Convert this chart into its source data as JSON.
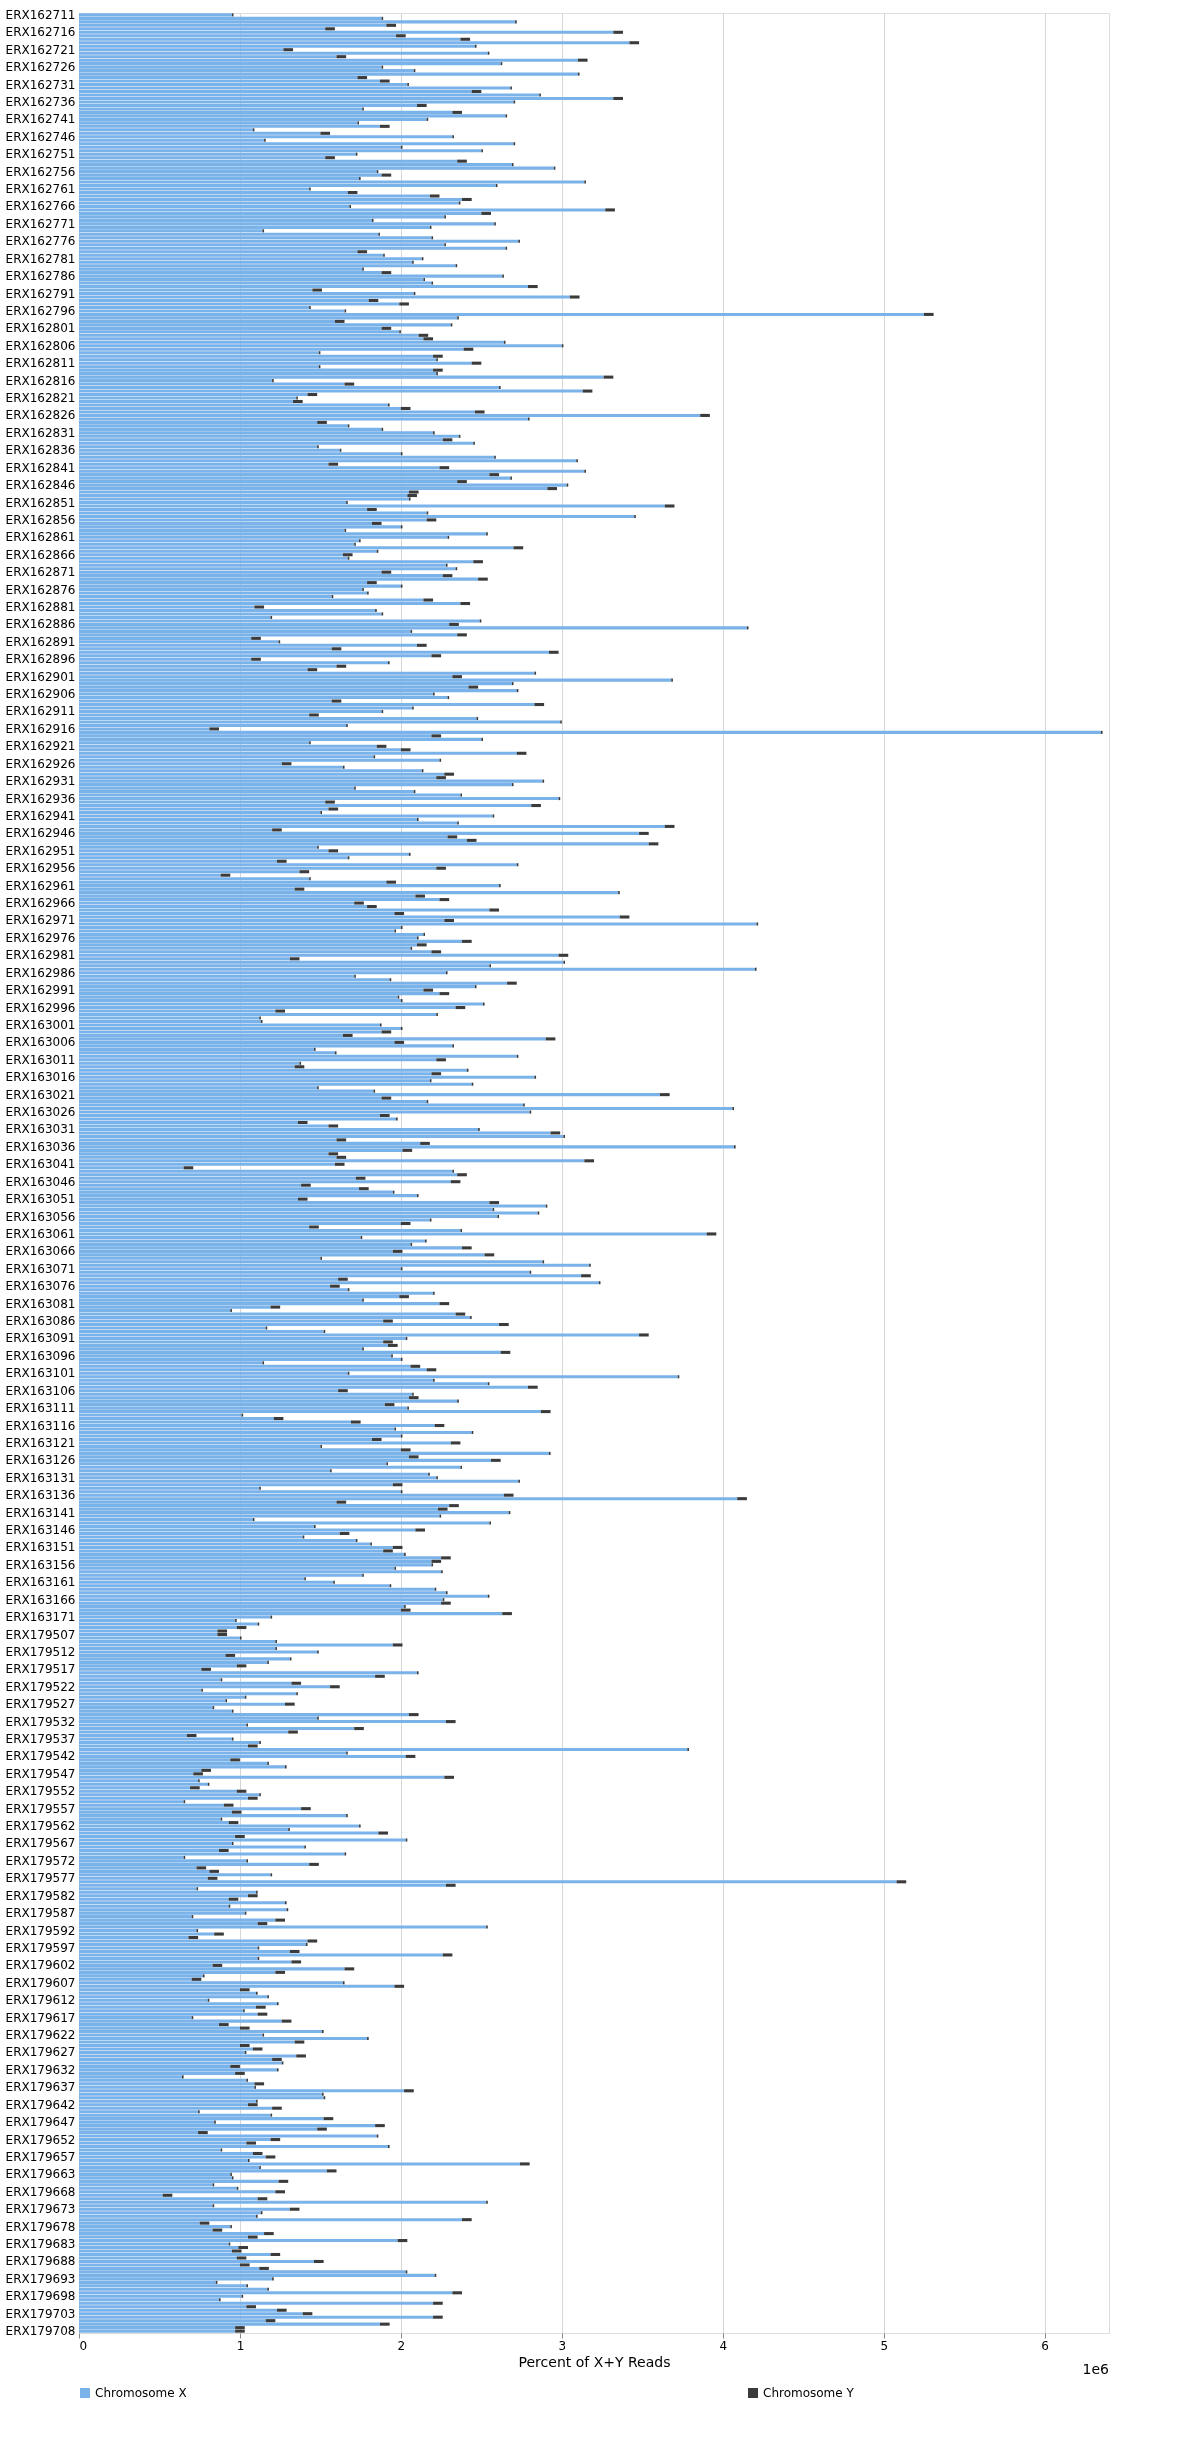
{
  "chart_data": {
    "type": "bar",
    "orientation": "horizontal",
    "stacked": true,
    "xlabel": "Percent of X+Y Reads",
    "annotations": [
      "1e6"
    ],
    "xlim": [
      0,
      6.4
    ],
    "xticks": [
      0,
      1,
      2,
      3,
      4,
      5,
      6
    ],
    "grid": "x",
    "legend": "bottom",
    "categories": [
      "ERX162711",
      null,
      null,
      null,
      null,
      "ERX162716",
      null,
      null,
      null,
      null,
      "ERX162721",
      null,
      null,
      null,
      null,
      "ERX162726",
      null,
      null,
      null,
      null,
      "ERX162731",
      null,
      null,
      null,
      null,
      "ERX162736",
      null,
      null,
      null,
      null,
      "ERX162741",
      null,
      null,
      null,
      null,
      "ERX162746",
      null,
      null,
      null,
      null,
      "ERX162751",
      null,
      null,
      null,
      null,
      "ERX162756",
      null,
      null,
      null,
      null,
      "ERX162761",
      null,
      null,
      null,
      null,
      "ERX162766",
      null,
      null,
      null,
      null,
      "ERX162771",
      null,
      null,
      null,
      null,
      "ERX162776",
      null,
      null,
      null,
      null,
      "ERX162781",
      null,
      null,
      null,
      null,
      "ERX162786",
      null,
      null,
      null,
      null,
      "ERX162791",
      null,
      null,
      null,
      null,
      "ERX162796",
      null,
      null,
      null,
      null,
      "ERX162801",
      null,
      null,
      null,
      null,
      "ERX162806",
      null,
      null,
      null,
      null,
      "ERX162811",
      null,
      null,
      null,
      null,
      "ERX162816",
      null,
      null,
      null,
      null,
      "ERX162821",
      null,
      null,
      null,
      null,
      "ERX162826",
      null,
      null,
      null,
      null,
      "ERX162831",
      null,
      null,
      null,
      null,
      "ERX162836",
      null,
      null,
      null,
      null,
      "ERX162841",
      null,
      null,
      null,
      null,
      "ERX162846",
      null,
      null,
      null,
      null,
      "ERX162851",
      null,
      null,
      null,
      null,
      "ERX162856",
      null,
      null,
      null,
      null,
      "ERX162861",
      null,
      null,
      null,
      null,
      "ERX162866",
      null,
      null,
      null,
      null,
      "ERX162871",
      null,
      null,
      null,
      null,
      "ERX162876",
      null,
      null,
      null,
      null,
      "ERX162881",
      null,
      null,
      null,
      null,
      "ERX162886",
      null,
      null,
      null,
      null,
      "ERX162891",
      null,
      null,
      null,
      null,
      "ERX162896",
      null,
      null,
      null,
      null,
      "ERX162901",
      null,
      null,
      null,
      null,
      "ERX162906",
      null,
      null,
      null,
      null,
      "ERX162911",
      null,
      null,
      null,
      null,
      "ERX162916",
      null,
      null,
      null,
      null,
      "ERX162921",
      null,
      null,
      null,
      null,
      "ERX162926",
      null,
      null,
      null,
      null,
      "ERX162931",
      null,
      null,
      null,
      null,
      "ERX162936",
      null,
      null,
      null,
      null,
      "ERX162941",
      null,
      null,
      null,
      null,
      "ERX162946",
      null,
      null,
      null,
      null,
      "ERX162951",
      null,
      null,
      null,
      null,
      "ERX162956",
      null,
      null,
      null,
      null,
      "ERX162961",
      null,
      null,
      null,
      null,
      "ERX162966",
      null,
      null,
      null,
      null,
      "ERX162971",
      null,
      null,
      null,
      null,
      "ERX162976",
      null,
      null,
      null,
      null,
      "ERX162981",
      null,
      null,
      null,
      null,
      "ERX162986",
      null,
      null,
      null,
      null,
      "ERX162991",
      null,
      null,
      null,
      null,
      "ERX162996",
      null,
      null,
      null,
      null,
      "ERX163001",
      null,
      null,
      null,
      null,
      "ERX163006",
      null,
      null,
      null,
      null,
      "ERX163011",
      null,
      null,
      null,
      null,
      "ERX163016",
      null,
      null,
      null,
      null,
      "ERX163021",
      null,
      null,
      null,
      null,
      "ERX163026",
      null,
      null,
      null,
      null,
      "ERX163031",
      null,
      null,
      null,
      null,
      "ERX163036",
      null,
      null,
      null,
      null,
      "ERX163041",
      null,
      null,
      null,
      null,
      "ERX163046",
      null,
      null,
      null,
      null,
      "ERX163051",
      null,
      null,
      null,
      null,
      "ERX163056",
      null,
      null,
      null,
      null,
      "ERX163061",
      null,
      null,
      null,
      null,
      "ERX163066",
      null,
      null,
      null,
      null,
      "ERX163071",
      null,
      null,
      null,
      null,
      "ERX163076",
      null,
      null,
      null,
      null,
      "ERX163081",
      null,
      null,
      null,
      null,
      "ERX163086",
      null,
      null,
      null,
      null,
      "ERX163091",
      null,
      null,
      null,
      null,
      "ERX163096",
      null,
      null,
      null,
      null,
      "ERX163101",
      null,
      null,
      null,
      null,
      "ERX163106",
      null,
      null,
      null,
      null,
      "ERX163111",
      null,
      null,
      null,
      null,
      "ERX163116",
      null,
      null,
      null,
      null,
      "ERX163121",
      null,
      null,
      null,
      null,
      "ERX163126",
      null,
      null,
      null,
      null,
      "ERX163131",
      null,
      null,
      null,
      null,
      "ERX163136",
      null,
      null,
      null,
      null,
      "ERX163141",
      null,
      null,
      null,
      null,
      "ERX163146",
      null,
      null,
      null,
      null,
      "ERX163151",
      null,
      null,
      null,
      null,
      "ERX163156",
      null,
      null,
      null,
      null,
      "ERX163161",
      null,
      null,
      null,
      null,
      "ERX163166",
      null,
      null,
      null,
      null,
      "ERX163171",
      null,
      null,
      null,
      null,
      "ERX179507",
      null,
      null,
      null,
      null,
      "ERX179512",
      null,
      null,
      null,
      null,
      "ERX179517",
      null,
      null,
      null,
      null,
      "ERX179522",
      null,
      null,
      null,
      null,
      "ERX179527",
      null,
      null,
      null,
      null,
      "ERX179532",
      null,
      null,
      null,
      null,
      "ERX179537",
      null,
      null,
      null,
      null,
      "ERX179542",
      null,
      null,
      null,
      null,
      "ERX179547",
      null,
      null,
      null,
      null,
      "ERX179552",
      null,
      null,
      null,
      null,
      "ERX179557",
      null,
      null,
      null,
      null,
      "ERX179562",
      null,
      null,
      null,
      null,
      "ERX179567",
      null,
      null,
      null,
      null,
      "ERX179572",
      null,
      null,
      null,
      null,
      "ERX179577",
      null,
      null,
      null,
      null,
      "ERX179582",
      null,
      null,
      null,
      null,
      "ERX179587",
      null,
      null,
      null,
      null,
      "ERX179592",
      null,
      null,
      null,
      null,
      "ERX179597",
      null,
      null,
      null,
      null,
      "ERX179602",
      null,
      null,
      null,
      null,
      "ERX179607",
      null,
      null,
      null,
      null,
      "ERX179612",
      null,
      null,
      null,
      null,
      "ERX179617",
      null,
      null,
      null,
      null,
      "ERX179622",
      null,
      null,
      null,
      null,
      "ERX179627",
      null,
      null,
      null,
      null,
      "ERX179632",
      null,
      null,
      null,
      null,
      "ERX179637",
      null,
      null,
      null,
      null,
      "ERX179642",
      null,
      null,
      null,
      null,
      "ERX179647",
      null,
      null,
      null,
      null,
      "ERX179652",
      null,
      null,
      null,
      null,
      "ERX179657",
      null,
      null,
      null,
      null,
      "ERX179663",
      null,
      null,
      null,
      null,
      "ERX179668",
      null,
      null,
      null,
      null,
      "ERX179673",
      null,
      null,
      null,
      null,
      "ERX179678",
      null,
      null,
      null,
      null,
      "ERX179683",
      null,
      null,
      null,
      null,
      "ERX179688",
      null,
      null,
      null,
      null,
      "ERX179693",
      null,
      null,
      null,
      null,
      "ERX179698",
      null,
      null,
      null,
      null,
      "ERX179703",
      null,
      null,
      null,
      null,
      "ERX179708"
    ],
    "series": [
      {
        "name": "Chromosome X",
        "color": "#7ab2ea",
        "values": [
          0.95,
          1.88,
          2.71,
          1.91,
          1.53,
          3.32,
          1.97,
          2.37,
          3.42,
          2.46,
          1.27,
          2.54,
          1.6,
          3.1,
          2.62,
          1.88,
          2.08,
          3.1,
          1.73,
          1.87,
          2.04,
          2.68,
          2.44,
          2.86,
          3.32,
          2.7,
          2.1,
          1.76,
          2.32,
          2.65,
          2.16,
          1.73,
          1.87,
          1.08,
          1.5,
          2.32,
          1.15,
          2.7,
          2.0,
          2.5,
          1.72,
          1.53,
          2.35,
          2.69,
          2.95,
          1.85,
          1.88,
          1.74,
          3.14,
          2.59,
          1.43,
          1.67,
          2.18,
          2.38,
          2.36,
          1.68,
          3.27,
          2.5,
          2.27,
          1.82,
          2.58,
          2.18,
          1.14,
          1.86,
          2.19,
          2.73,
          2.27,
          2.65,
          1.73,
          1.89,
          2.13,
          2.07,
          2.34,
          1.76,
          1.88,
          2.63,
          2.14,
          2.19,
          2.79,
          1.45,
          2.08,
          3.05,
          1.8,
          1.99,
          1.43,
          1.65,
          5.25,
          2.35,
          1.59,
          2.31,
          1.88,
          1.99,
          2.11,
          2.14,
          2.64,
          3.0,
          2.39,
          1.49,
          2.2,
          2.22,
          2.44,
          1.49,
          2.2,
          2.22,
          3.26,
          1.2,
          1.65,
          2.61,
          3.13,
          1.42,
          1.35,
          1.33,
          1.92,
          2.0,
          2.46,
          3.86,
          2.79,
          1.48,
          1.67,
          1.88,
          2.2,
          2.36,
          2.26,
          2.45,
          1.48,
          1.62,
          2.0,
          2.58,
          3.09,
          1.55,
          2.24,
          3.14,
          2.55,
          2.68,
          2.35,
          3.03,
          2.91,
          2.05,
          2.04,
          2.05,
          1.66,
          3.64,
          1.79,
          2.16,
          3.45,
          2.16,
          1.82,
          2.0,
          1.65,
          2.53,
          2.29,
          1.74,
          1.71,
          2.7,
          1.85,
          1.64,
          1.67,
          2.45,
          2.28,
          2.34,
          1.88,
          2.26,
          2.48,
          1.79,
          2.0,
          1.76,
          1.79,
          1.57,
          2.14,
          2.37,
          1.09,
          1.84,
          1.88,
          1.19,
          2.49,
          2.3,
          4.15,
          2.06,
          2.35,
          1.07,
          1.24,
          2.1,
          1.57,
          2.92,
          2.19,
          1.07,
          1.92,
          1.6,
          1.42,
          2.83,
          2.32,
          3.68,
          2.69,
          2.42,
          2.72,
          2.2,
          2.29,
          1.57,
          2.83,
          2.07,
          1.88,
          1.43,
          2.47,
          2.99,
          1.66,
          0.81,
          6.35,
          2.19,
          2.5,
          1.43,
          1.85,
          2.0,
          2.72,
          1.83,
          2.24,
          1.26,
          1.64,
          2.13,
          2.27,
          2.22,
          2.88,
          2.69,
          1.71,
          2.08,
          2.37,
          2.98,
          1.53,
          2.81,
          1.55,
          1.5,
          2.57,
          2.1,
          2.35,
          3.64,
          1.2,
          3.48,
          2.29,
          2.41,
          3.54,
          1.48,
          1.55,
          2.05,
          1.67,
          1.23,
          2.72,
          2.22,
          1.37,
          0.88,
          1.43,
          1.91,
          2.61,
          1.34,
          3.35,
          2.09,
          2.24,
          1.71,
          1.79,
          2.55,
          1.96,
          3.36,
          2.27,
          4.21,
          2.0,
          1.96,
          2.14,
          2.1,
          2.38,
          2.1,
          2.06,
          2.19,
          2.98,
          1.31,
          3.01,
          2.55,
          4.2,
          2.28,
          1.71,
          1.93,
          2.66,
          2.46,
          2.14,
          2.24,
          1.98,
          2.0,
          2.51,
          2.34,
          1.22,
          2.22,
          1.12,
          1.13,
          1.87,
          2.0,
          1.88,
          1.64,
          2.9,
          1.96,
          2.32,
          1.46,
          1.59,
          2.72,
          2.22,
          1.37,
          1.34,
          2.41,
          2.19,
          2.83,
          2.18,
          2.44,
          1.48,
          1.83,
          3.61,
          1.88,
          2.16,
          2.76,
          4.06,
          2.8,
          1.87,
          1.97,
          1.36,
          1.55,
          2.48,
          2.93,
          3.01,
          1.6,
          2.12,
          4.07,
          2.01,
          1.55,
          1.6,
          3.14,
          1.59,
          0.65,
          2.32,
          2.35,
          1.72,
          2.31,
          1.38,
          1.74,
          1.95,
          2.1,
          1.36,
          2.55,
          2.9,
          2.57,
          2.85,
          2.6,
          2.18,
          2.0,
          1.43,
          2.37,
          3.9,
          1.75,
          2.15,
          2.06,
          2.38,
          1.95,
          2.52,
          1.5,
          2.88,
          3.17,
          2.0,
          2.8,
          3.12,
          1.61,
          3.23,
          1.56,
          1.67,
          2.2,
          1.99,
          1.76,
          2.24,
          1.19,
          0.94,
          2.34,
          2.43,
          1.89,
          2.61,
          1.16,
          1.52,
          3.48,
          2.03,
          1.89,
          1.92,
          1.76,
          2.62,
          1.94,
          2.0,
          1.14,
          2.06,
          2.16,
          1.67,
          3.72,
          2.2,
          2.54,
          2.79,
          1.61,
          2.07,
          2.05,
          2.35,
          1.9,
          2.04,
          2.87,
          1.01,
          1.21,
          1.69,
          2.21,
          1.96,
          2.44,
          2.0,
          1.82,
          2.31,
          1.5,
          2.0,
          2.92,
          2.05,
          2.56,
          1.91,
          2.37,
          1.56,
          2.17,
          2.22,
          2.73,
          1.95,
          1.12,
          2.0,
          2.64,
          4.09,
          1.6,
          2.3,
          2.23,
          2.67,
          2.24,
          1.08,
          2.55,
          1.46,
          2.09,
          1.62,
          1.39,
          1.72,
          1.81,
          1.95,
          1.89,
          2.02,
          2.25,
          2.19,
          2.19,
          1.96,
          2.25,
          1.76,
          1.4,
          1.58,
          1.93,
          2.21,
          2.28,
          2.54,
          2.26,
          2.25,
          2.02,
          2.0,
          2.63,
          1.19,
          0.97,
          1.11,
          0.98,
          0.86,
          0.86,
          1.0,
          1.22,
          1.95,
          1.22,
          1.48,
          0.91,
          1.31,
          1.17,
          0.98,
          0.76,
          2.1,
          1.84,
          0.88,
          1.32,
          1.56,
          0.76,
          1.35,
          1.03,
          0.91,
          1.28,
          0.83,
          0.95,
          2.05,
          1.48,
          2.28,
          1.04,
          1.71,
          1.3,
          0.67,
          0.95,
          1.12,
          1.05,
          3.78,
          1.66,
          2.03,
          0.94,
          1.17,
          1.28,
          0.76,
          0.71,
          2.27,
          0.74,
          0.8,
          0.69,
          0.98,
          1.12,
          1.05,
          0.65,
          0.9,
          1.38,
          0.95,
          1.66,
          0.88,
          0.93,
          1.74,
          1.3,
          1.86,
          0.97,
          2.03,
          0.95,
          1.4,
          0.87,
          1.65,
          0.65,
          1.04,
          1.43,
          0.73,
          0.81,
          1.19,
          0.8,
          5.08,
          2.28,
          0.73,
          1.1,
          1.05,
          0.93,
          1.28,
          0.93,
          1.29,
          1.03,
          0.7,
          1.22,
          1.11,
          2.53,
          0.73,
          0.84,
          0.68,
          1.42,
          1.41,
          1.11,
          1.31,
          2.26,
          1.11,
          1.32,
          0.83,
          1.65,
          1.22,
          0.77,
          0.7,
          1.64,
          1.96,
          1.0,
          1.1,
          1.17,
          0.8,
          1.23,
          1.1,
          1.02,
          1.11,
          0.7,
          1.26,
          0.87,
          1.0,
          1.51,
          1.14,
          1.79,
          1.34,
          1.0,
          1.08,
          1.03,
          1.35,
          1.2,
          1.26,
          0.94,
          1.23,
          0.97,
          0.64,
          1.04,
          1.09,
          1.09,
          2.02,
          1.51,
          1.52,
          1.1,
          1.05,
          1.2,
          0.74,
          1.19,
          1.52,
          0.84,
          1.84,
          1.48,
          0.74,
          1.85,
          1.19,
          1.04,
          1.92,
          0.88,
          1.08,
          1.16,
          1.05,
          2.74,
          1.12,
          1.54,
          0.94,
          0.95,
          1.24,
          0.83,
          0.98,
          1.22,
          0.52,
          1.11,
          2.53,
          0.83,
          1.31,
          1.13,
          1.1,
          2.38,
          0.75,
          0.94,
          0.83,
          1.15,
          1.05,
          1.98,
          0.93,
          0.99,
          0.95,
          1.19,
          0.98,
          1.46,
          1.0,
          1.12,
          2.03,
          2.21,
          1.2,
          0.85,
          1.04,
          1.17,
          2.32,
          1.01,
          0.87,
          2.2,
          1.04,
          1.23,
          1.39,
          2.2,
          1.16,
          1.87,
          0.97,
          0.97
        ]
      },
      {
        "name": "Chromosome Y",
        "color": "#3b3b3b",
        "values": [
          0.01,
          0.01,
          0.01,
          0.06,
          0.06,
          0.06,
          0.06,
          0.06,
          0.06,
          0.01,
          0.06,
          0.01,
          0.06,
          0.06,
          0.01,
          0.01,
          0.01,
          0.01,
          0.06,
          0.06,
          0.01,
          0.01,
          0.06,
          0.01,
          0.06,
          0.01,
          0.06,
          0.01,
          0.06,
          0.01,
          0.01,
          0.01,
          0.06,
          0.01,
          0.06,
          0.01,
          0.01,
          0.01,
          0.01,
          0.01,
          0.01,
          0.06,
          0.06,
          0.01,
          0.01,
          0.01,
          0.06,
          0.01,
          0.01,
          0.01,
          0.01,
          0.06,
          0.06,
          0.06,
          0.01,
          0.01,
          0.06,
          0.06,
          0.01,
          0.01,
          0.01,
          0.01,
          0.01,
          0.01,
          0.01,
          0.01,
          0.01,
          0.01,
          0.06,
          0.01,
          0.01,
          0.01,
          0.01,
          0.01,
          0.06,
          0.01,
          0.01,
          0.01,
          0.06,
          0.06,
          0.01,
          0.06,
          0.06,
          0.06,
          0.01,
          0.01,
          0.06,
          0.01,
          0.06,
          0.01,
          0.06,
          0.01,
          0.06,
          0.06,
          0.01,
          0.01,
          0.06,
          0.01,
          0.06,
          0.01,
          0.06,
          0.01,
          0.06,
          0.01,
          0.06,
          0.01,
          0.06,
          0.01,
          0.06,
          0.06,
          0.01,
          0.06,
          0.01,
          0.06,
          0.06,
          0.06,
          0.01,
          0.06,
          0.01,
          0.01,
          0.01,
          0.01,
          0.06,
          0.01,
          0.01,
          0.01,
          0.01,
          0.01,
          0.01,
          0.06,
          0.06,
          0.01,
          0.06,
          0.01,
          0.06,
          0.01,
          0.06,
          0.06,
          0.06,
          0.01,
          0.01,
          0.06,
          0.06,
          0.01,
          0.01,
          0.06,
          0.06,
          0.01,
          0.01,
          0.01,
          0.01,
          0.01,
          0.01,
          0.06,
          0.01,
          0.06,
          0.01,
          0.06,
          0.01,
          0.01,
          0.06,
          0.06,
          0.06,
          0.06,
          0.01,
          0.01,
          0.01,
          0.01,
          0.06,
          0.06,
          0.06,
          0.01,
          0.01,
          0.01,
          0.01,
          0.06,
          0.01,
          0.01,
          0.06,
          0.06,
          0.01,
          0.06,
          0.06,
          0.06,
          0.06,
          0.06,
          0.01,
          0.06,
          0.06,
          0.01,
          0.06,
          0.01,
          0.01,
          0.06,
          0.01,
          0.01,
          0.01,
          0.06,
          0.06,
          0.01,
          0.01,
          0.06,
          0.01,
          0.01,
          0.01,
          0.06,
          0.01,
          0.06,
          0.01,
          0.01,
          0.06,
          0.06,
          0.06,
          0.01,
          0.01,
          0.06,
          0.01,
          0.01,
          0.06,
          0.06,
          0.01,
          0.01,
          0.01,
          0.01,
          0.01,
          0.01,
          0.06,
          0.06,
          0.06,
          0.01,
          0.01,
          0.01,
          0.01,
          0.06,
          0.06,
          0.06,
          0.06,
          0.06,
          0.06,
          0.01,
          0.06,
          0.01,
          0.01,
          0.06,
          0.01,
          0.06,
          0.06,
          0.06,
          0.01,
          0.06,
          0.01,
          0.06,
          0.01,
          0.06,
          0.06,
          0.06,
          0.06,
          0.06,
          0.06,
          0.06,
          0.06,
          0.01,
          0.01,
          0.01,
          0.01,
          0.01,
          0.06,
          0.06,
          0.01,
          0.06,
          0.06,
          0.06,
          0.01,
          0.01,
          0.01,
          0.01,
          0.01,
          0.01,
          0.06,
          0.01,
          0.06,
          0.06,
          0.01,
          0.01,
          0.01,
          0.06,
          0.06,
          0.01,
          0.01,
          0.01,
          0.01,
          0.01,
          0.06,
          0.06,
          0.06,
          0.06,
          0.01,
          0.01,
          0.01,
          0.01,
          0.06,
          0.01,
          0.06,
          0.01,
          0.06,
          0.01,
          0.01,
          0.01,
          0.01,
          0.01,
          0.06,
          0.06,
          0.01,
          0.01,
          0.01,
          0.01,
          0.06,
          0.01,
          0.06,
          0.06,
          0.01,
          0.06,
          0.01,
          0.06,
          0.06,
          0.01,
          0.06,
          0.06,
          0.06,
          0.06,
          0.06,
          0.06,
          0.01,
          0.06,
          0.06,
          0.06,
          0.06,
          0.06,
          0.01,
          0.01,
          0.06,
          0.06,
          0.01,
          0.01,
          0.01,
          0.01,
          0.01,
          0.06,
          0.06,
          0.01,
          0.06,
          0.01,
          0.01,
          0.01,
          0.06,
          0.06,
          0.06,
          0.01,
          0.01,
          0.01,
          0.01,
          0.01,
          0.06,
          0.06,
          0.01,
          0.06,
          0.01,
          0.01,
          0.06,
          0.01,
          0.06,
          0.06,
          0.01,
          0.06,
          0.01,
          0.06,
          0.06,
          0.01,
          0.01,
          0.06,
          0.01,
          0.06,
          0.06,
          0.01,
          0.06,
          0.01,
          0.01,
          0.01,
          0.06,
          0.06,
          0.01,
          0.01,
          0.01,
          0.01,
          0.06,
          0.06,
          0.01,
          0.06,
          0.01,
          0.06,
          0.01,
          0.06,
          0.01,
          0.06,
          0.06,
          0.06,
          0.01,
          0.01,
          0.01,
          0.06,
          0.06,
          0.01,
          0.06,
          0.01,
          0.06,
          0.06,
          0.01,
          0.01,
          0.01,
          0.01,
          0.01,
          0.01,
          0.06,
          0.01,
          0.01,
          0.06,
          0.06,
          0.06,
          0.06,
          0.06,
          0.01,
          0.01,
          0.01,
          0.01,
          0.01,
          0.06,
          0.06,
          0.01,
          0.01,
          0.01,
          0.06,
          0.06,
          0.01,
          0.06,
          0.06,
          0.01,
          0.01,
          0.01,
          0.01,
          0.01,
          0.01,
          0.01,
          0.01,
          0.01,
          0.01,
          0.01,
          0.06,
          0.01,
          0.06,
          0.06,
          0.01,
          0.01,
          0.01,
          0.06,
          0.06,
          0.06,
          0.01,
          0.01,
          0.06,
          0.01,
          0.01,
          0.06,
          0.01,
          0.01,
          0.06,
          0.06,
          0.01,
          0.06,
          0.01,
          0.06,
          0.06,
          0.01,
          0.01,
          0.01,
          0.01,
          0.06,
          0.01,
          0.01,
          0.06,
          0.01,
          0.06,
          0.01,
          0.06,
          0.06,
          0.06,
          0.01,
          0.01,
          0.06,
          0.01,
          0.01,
          0.06,
          0.06,
          0.01,
          0.01,
          0.06,
          0.06,
          0.06,
          0.01,
          0.01,
          0.06,
          0.06,
          0.01,
          0.06,
          0.01,
          0.06,
          0.06,
          0.06,
          0.01,
          0.01,
          0.06,
          0.01,
          0.01,
          0.06,
          0.06,
          0.01,
          0.01,
          0.01,
          0.06,
          0.01,
          0.01,
          0.01,
          0.06,
          0.06,
          0.06,
          0.01,
          0.06,
          0.06,
          0.06,
          0.01,
          0.01,
          0.06,
          0.06,
          0.01,
          0.01,
          0.01,
          0.01,
          0.01,
          0.06,
          0.06,
          0.01,
          0.01,
          0.06,
          0.06,
          0.06,
          0.01,
          0.01,
          0.06,
          0.06,
          0.01,
          0.06,
          0.06,
          0.06,
          0.06,
          0.01,
          0.06,
          0.01,
          0.06,
          0.06,
          0.01,
          0.01,
          0.01,
          0.01,
          0.06,
          0.01,
          0.06,
          0.01,
          0.06,
          0.06,
          0.06,
          0.01,
          0.01,
          0.01,
          0.06,
          0.06,
          0.06,
          0.01,
          0.06,
          0.06,
          0.01,
          0.06,
          0.01,
          0.06,
          0.01,
          0.01,
          0.06,
          0.01,
          0.06,
          0.01,
          0.01,
          0.01,
          0.06,
          0.06,
          0.01,
          0.01,
          0.06,
          0.01,
          0.06,
          0.06,
          0.06,
          0.01,
          0.06,
          0.06,
          0.01,
          0.01,
          0.06,
          0.06,
          0.01,
          0.06,
          0.01,
          0.06,
          0.01,
          0.01,
          0.06,
          0.01,
          0.01,
          0.06,
          0.06,
          0.06,
          0.01,
          0.01,
          0.06,
          0.01,
          0.01,
          0.06,
          0.06,
          0.01,
          0.06,
          0.06,
          0.06,
          0.06,
          0.01,
          0.06,
          0.06,
          0.06,
          0.06,
          0.06,
          0.06,
          0.06,
          0.01,
          0.01,
          0.01,
          0.01,
          0.01,
          0.01,
          0.06,
          0.01,
          0.01,
          0.06,
          0.06,
          0.06,
          0.06,
          0.06,
          0.06,
          0.06,
          0.06,
          0.06
        ]
      }
    ]
  }
}
